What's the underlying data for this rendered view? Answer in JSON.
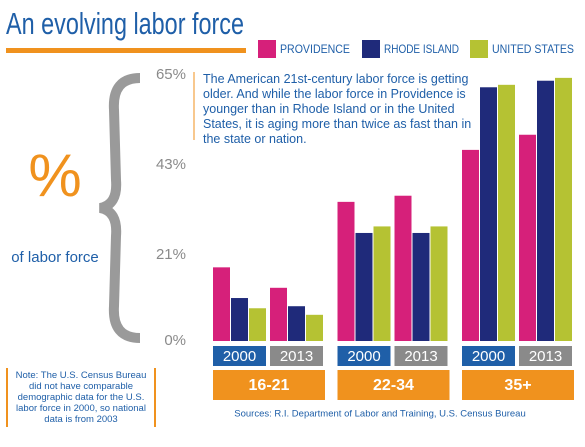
{
  "chart_data": {
    "type": "bar",
    "title": "An evolving labor force",
    "y_symbol": "%",
    "y_label": "of labor force",
    "description": "The American 21st-century labor force is getting older. And while the labor force in Providence is younger than in Rhode Island or in the United States, it is aging more than twice as fast than in the state or nation.",
    "note": "Note: The U.S. Census Bureau did not have comparable demographic data for the U.S. labor force in 2000, so national data is from 2003",
    "source": "Sources: R.I. Department of Labor and Training, U.S. Census Bureau",
    "groups": [
      "16-21",
      "22-34",
      "35+"
    ],
    "categories": [
      "2000",
      "2013",
      "2000",
      "2013",
      "2000",
      "2013"
    ],
    "series": [
      {
        "name": "PROVIDENCE",
        "color": "#d6207a",
        "values": [
          18,
          13,
          34,
          35.5,
          46.7,
          50.4
        ]
      },
      {
        "name": "RHODE ISLAND",
        "color": "#1f2a7a",
        "values": [
          10.5,
          8.5,
          26.4,
          26.4,
          62,
          63.6
        ]
      },
      {
        "name": "UNITED STATES",
        "color": "#b5c233",
        "values": [
          8,
          6.4,
          28,
          28,
          62.6,
          64.3
        ]
      }
    ],
    "ylim": [
      0,
      65
    ],
    "yticks": [
      {
        "value": 0,
        "label": "0%"
      },
      {
        "value": 21,
        "label": "21%"
      },
      {
        "value": 43,
        "label": "43%"
      },
      {
        "value": 65,
        "label": "65%"
      }
    ],
    "grid": false
  }
}
